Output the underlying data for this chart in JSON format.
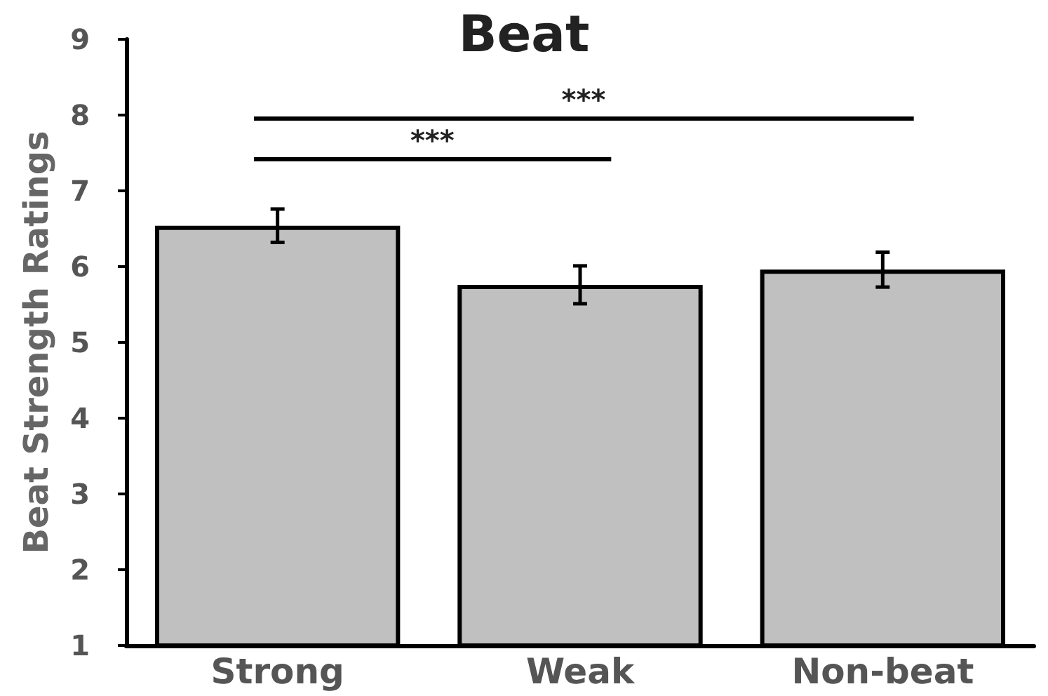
{
  "chart_data": {
    "type": "bar",
    "title": "Beat",
    "ylabel": "Beat Strength Ratings",
    "categories": [
      "Strong",
      "Weak",
      "Non-beat"
    ],
    "values": [
      6.54,
      5.76,
      5.96
    ],
    "errors": [
      0.22,
      0.25,
      0.23
    ],
    "color": "#c0c0c0",
    "ylim": [
      1,
      9
    ],
    "yticks": [
      1,
      2,
      3,
      4,
      5,
      6,
      7,
      8,
      9
    ],
    "grid": false,
    "annotations": [
      "***",
      "***"
    ]
  }
}
